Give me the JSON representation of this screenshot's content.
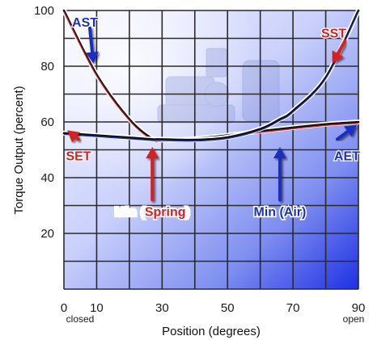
{
  "chart_data": {
    "type": "line",
    "xlabel": "Position (degrees)",
    "ylabel": "Torque Output (percent)",
    "xlim": [
      0,
      90
    ],
    "ylim": [
      0,
      100
    ],
    "x_ticks": [
      0,
      10,
      30,
      50,
      70,
      90
    ],
    "x_tick_labels": [
      "0",
      "10",
      "30",
      "50",
      "70",
      "90"
    ],
    "x_tick_sublabels": [
      {
        "x": 0,
        "text": "closed"
      },
      {
        "x": 90,
        "text": "open"
      }
    ],
    "y_ticks": [
      20,
      40,
      60,
      80,
      100
    ],
    "y_tick_labels": [
      "20",
      "40",
      "60",
      "80",
      "100"
    ],
    "grid": true,
    "series": [
      {
        "name": "Spring",
        "color": "#d42020",
        "x": [
          0,
          10,
          20,
          27,
          30,
          40,
          50,
          60,
          70,
          80,
          90
        ],
        "y": [
          100,
          77,
          61,
          54,
          53.5,
          54,
          55.2,
          56.7,
          58,
          59.2,
          60
        ]
      },
      {
        "name": "Air",
        "color": "#1c2fbf",
        "x": [
          0,
          10,
          20,
          27,
          30,
          40,
          50,
          60,
          66,
          70,
          80,
          90
        ],
        "y": [
          56,
          55.2,
          54.4,
          53.8,
          53.8,
          53.6,
          54.5,
          57.5,
          61,
          64,
          76,
          100
        ]
      }
    ],
    "annotations": [
      {
        "text": "AST",
        "color": "#1c2fbf",
        "x": 0.5,
        "y": 96,
        "arrow_to": [
          9,
          81
        ]
      },
      {
        "text": "SST",
        "color": "#d42020",
        "x": 79,
        "y": 92,
        "arrow_to": [
          82,
          81
        ]
      },
      {
        "text": "SET",
        "color": "#d42020",
        "x": 0,
        "y": 48,
        "arrow_to": [
          1,
          57
        ]
      },
      {
        "text": "AET",
        "color": "#1c2fbf",
        "x": 88,
        "y": 48,
        "arrow_to": [
          89.5,
          59
        ]
      },
      {
        "text_parts": [
          {
            "text": "Min (",
            "style": "white"
          },
          {
            "text": "Spring",
            "style": "red"
          },
          {
            "text": ")",
            "style": "white"
          }
        ],
        "x": 27,
        "y": 28,
        "arrow_to": [
          27,
          51
        ]
      },
      {
        "text_parts": [
          {
            "text": "Min (Air)",
            "style": "blue"
          }
        ],
        "x": 66,
        "y": 28,
        "arrow_to": [
          66,
          51
        ]
      }
    ]
  },
  "colors": {
    "spring": "#d42020",
    "air": "#1c2fbf",
    "grid": "#2a2a2a",
    "bg_light": "#f4f6ff",
    "bg_dark": "#2a3ce0"
  }
}
